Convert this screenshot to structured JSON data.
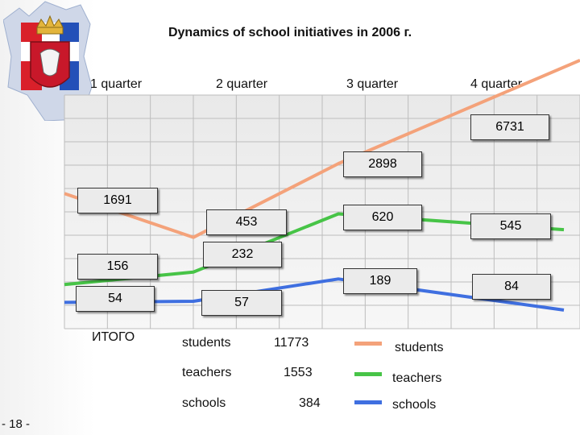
{
  "title": "Dynamics of school initiatives in 2006 г.",
  "chart_data": {
    "type": "line",
    "categories": [
      "1 quarter",
      "2 quarter",
      "3 quarter",
      "4 quarter"
    ],
    "series": [
      {
        "name": "students",
        "values": [
          1691,
          453,
          2898,
          6731
        ],
        "color": "#f4a27a"
      },
      {
        "name": "teachers",
        "values": [
          156,
          232,
          620,
          545
        ],
        "color": "#47c447"
      },
      {
        "name": "schools",
        "values": [
          54,
          57,
          189,
          84
        ],
        "color": "#3f6fe0"
      }
    ],
    "value_labels": {
      "students": [
        "1691",
        "453",
        "2898",
        "6731"
      ],
      "teachers": [
        "156",
        "232",
        "620",
        "545"
      ],
      "schools": [
        "54",
        "57",
        "189",
        "84"
      ]
    },
    "legend_placement": "bottom-right",
    "grid": true
  },
  "totals": {
    "heading": "ИТОГО",
    "rows": [
      {
        "label": "students",
        "value": "11773"
      },
      {
        "label": "teachers",
        "value": "1553"
      },
      {
        "label": "schools",
        "value": "384"
      }
    ]
  },
  "legend": [
    {
      "label": "students",
      "color": "#f4a27a"
    },
    {
      "label": "teachers",
      "color": "#47c447"
    },
    {
      "label": "schools",
      "color": "#3f6fe0"
    }
  ],
  "page_number": "- 18 -",
  "emblem_icon": "perm-krai-coat-of-arms-icon"
}
